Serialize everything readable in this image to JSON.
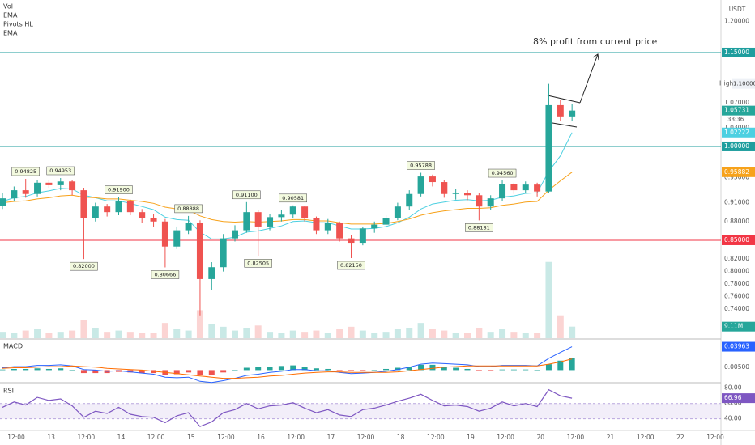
{
  "chart_data": {
    "type": "candlestick",
    "legend": [
      "Vol",
      "EMA",
      "Pivots HL",
      "EMA"
    ],
    "currency": "USDT",
    "annotation": "8% profit from current price",
    "time_labels": [
      "12:00",
      "13",
      "12:00",
      "14",
      "12:00",
      "15",
      "12:00",
      "16",
      "12:00",
      "17",
      "12:00",
      "18",
      "12:00",
      "19",
      "12:00",
      "20",
      "12:00",
      "21",
      "12:00",
      "22",
      "12:00"
    ],
    "ylim": [
      0.6935,
      1.234
    ],
    "yticks": [
      {
        "value": 0.74,
        "label": "0.74000"
      },
      {
        "value": 0.76,
        "label": "0.76000"
      },
      {
        "value": 0.78,
        "label": "0.78000"
      },
      {
        "value": 0.8,
        "label": "0.80000"
      },
      {
        "value": 0.82,
        "label": "0.82000"
      },
      {
        "value": 0.88,
        "label": "0.88000"
      },
      {
        "value": 0.91,
        "label": "0.91000"
      },
      {
        "value": 0.95,
        "label": "0.95000"
      },
      {
        "value": 1.03,
        "label": "1.03000"
      },
      {
        "value": 1.07,
        "label": "1.07000"
      },
      {
        "value": 1.2,
        "label": "1.20000"
      }
    ],
    "candles": {
      "up_color": "#26a69a",
      "down_color": "#ef5350",
      "last_label": "1.05731",
      "countdown": "38:36",
      "open": [
        0.905,
        0.917,
        0.93,
        0.924,
        0.942,
        0.938,
        0.944,
        0.93,
        0.885,
        0.904,
        0.895,
        0.912,
        0.895,
        0.885,
        0.88,
        0.84,
        0.866,
        0.878,
        0.788,
        0.807,
        0.853,
        0.866,
        0.895,
        0.872,
        0.887,
        0.891,
        0.904,
        0.885,
        0.866,
        0.878,
        0.853,
        0.846,
        0.869,
        0.875,
        0.885,
        0.904,
        0.924,
        0.952,
        0.943,
        0.924,
        0.926,
        0.922,
        0.904,
        0.917,
        0.94,
        0.93,
        0.939,
        0.928,
        1.066,
        1.048
      ],
      "high": [
        0.925,
        0.936,
        0.94825,
        0.946,
        0.947,
        0.94953,
        0.946,
        0.934,
        0.91,
        0.908,
        0.919,
        0.915,
        0.9,
        0.892,
        0.884,
        0.872,
        0.88888,
        0.882,
        0.815,
        0.86,
        0.874,
        0.911,
        0.898,
        0.892,
        0.898,
        0.90581,
        0.905,
        0.888,
        0.884,
        0.88,
        0.858,
        0.872,
        0.88,
        0.89,
        0.91,
        0.93,
        0.95788,
        0.955,
        0.946,
        0.932,
        0.93,
        0.925,
        0.922,
        0.9456,
        0.942,
        0.944,
        0.942,
        1.1,
        1.075,
        1.068
      ],
      "low": [
        0.9,
        0.912,
        0.918,
        0.92,
        0.934,
        0.93,
        0.922,
        0.82,
        0.88,
        0.888,
        0.89,
        0.89,
        0.878,
        0.872,
        0.80666,
        0.836,
        0.86,
        0.73,
        0.77,
        0.8,
        0.848,
        0.862,
        0.82505,
        0.866,
        0.88,
        0.886,
        0.88,
        0.86,
        0.86,
        0.848,
        0.8215,
        0.842,
        0.862,
        0.87,
        0.882,
        0.898,
        0.92,
        0.936,
        0.918,
        0.915,
        0.914,
        0.88181,
        0.898,
        0.912,
        0.924,
        0.926,
        0.92,
        0.925,
        1.04,
        1.04
      ],
      "close": [
        0.917,
        0.93,
        0.924,
        0.942,
        0.938,
        0.944,
        0.93,
        0.885,
        0.904,
        0.895,
        0.912,
        0.895,
        0.885,
        0.88,
        0.84,
        0.866,
        0.878,
        0.788,
        0.807,
        0.853,
        0.866,
        0.895,
        0.872,
        0.887,
        0.891,
        0.904,
        0.885,
        0.866,
        0.878,
        0.853,
        0.846,
        0.869,
        0.875,
        0.885,
        0.904,
        0.924,
        0.952,
        0.943,
        0.924,
        0.926,
        0.922,
        0.904,
        0.917,
        0.94,
        0.93,
        0.939,
        0.928,
        1.066,
        1.048,
        1.05731
      ],
      "pivot_high_labels": [
        null,
        null,
        "0.94825",
        null,
        null,
        "0.94953",
        null,
        null,
        null,
        null,
        "0.91900",
        null,
        null,
        null,
        null,
        null,
        "0.88888",
        null,
        null,
        null,
        null,
        "0.91100",
        null,
        null,
        null,
        "0.90581",
        null,
        null,
        null,
        null,
        null,
        null,
        null,
        null,
        null,
        null,
        "0.95788",
        null,
        null,
        null,
        null,
        null,
        null,
        "0.94560",
        null,
        null,
        null,
        null,
        null,
        null
      ],
      "pivot_low_labels": [
        null,
        null,
        null,
        null,
        null,
        null,
        null,
        "0.82000",
        null,
        null,
        null,
        null,
        null,
        null,
        "0.80666",
        null,
        null,
        null,
        null,
        null,
        null,
        null,
        "0.82505",
        null,
        null,
        null,
        null,
        null,
        null,
        null,
        "0.82150",
        null,
        null,
        null,
        null,
        null,
        null,
        null,
        null,
        null,
        null,
        "0.88181",
        null,
        null,
        null,
        null,
        null,
        null,
        null,
        null
      ]
    },
    "ema": [
      {
        "color": "#4dd0e1",
        "last_label": "1.02222",
        "values": [
          0.912,
          0.918,
          0.92,
          0.926,
          0.929,
          0.933,
          0.932,
          0.922,
          0.918,
          0.913,
          0.913,
          0.909,
          0.904,
          0.899,
          0.887,
          0.883,
          0.882,
          0.863,
          0.852,
          0.852,
          0.855,
          0.863,
          0.865,
          0.869,
          0.873,
          0.88,
          0.881,
          0.878,
          0.878,
          0.873,
          0.868,
          0.868,
          0.869,
          0.872,
          0.878,
          0.887,
          0.9,
          0.908,
          0.911,
          0.914,
          0.915,
          0.913,
          0.914,
          0.919,
          0.921,
          0.925,
          0.926,
          0.96,
          0.985,
          1.02222
        ]
      },
      {
        "color": "#f7a21b",
        "last_label": "0.95882",
        "values": [
          0.91,
          0.912,
          0.913,
          0.916,
          0.918,
          0.921,
          0.922,
          0.919,
          0.918,
          0.916,
          0.916,
          0.914,
          0.912,
          0.909,
          0.903,
          0.9,
          0.898,
          0.889,
          0.883,
          0.88,
          0.879,
          0.88,
          0.879,
          0.88,
          0.881,
          0.883,
          0.883,
          0.881,
          0.881,
          0.878,
          0.876,
          0.876,
          0.876,
          0.877,
          0.88,
          0.884,
          0.89,
          0.894,
          0.897,
          0.899,
          0.901,
          0.901,
          0.902,
          0.906,
          0.908,
          0.911,
          0.912,
          0.93,
          0.945,
          0.95882
        ]
      }
    ],
    "hlines": [
      {
        "value": 1.15,
        "label": "1.15000",
        "color": "#1e9e9e"
      },
      {
        "value": 1.0,
        "label": "1.00000",
        "color": "#1e9e9e"
      },
      {
        "value": 0.85,
        "label": "0.85000",
        "color": "#f23645"
      }
    ],
    "high_marker": {
      "caption": "High",
      "value": 1.1,
      "label": "1.10000"
    },
    "volume": {
      "ylim": [
        0,
        70
      ],
      "last_label": "9.11M",
      "values": [
        5,
        4,
        6,
        7,
        4,
        5,
        6,
        14,
        8,
        5,
        6,
        5,
        4,
        4,
        12,
        7,
        6,
        22,
        11,
        9,
        6,
        8,
        10,
        5,
        4,
        6,
        5,
        6,
        4,
        7,
        9,
        6,
        4,
        5,
        7,
        8,
        12,
        7,
        6,
        4,
        4,
        8,
        5,
        7,
        5,
        4,
        4,
        60,
        18,
        9.11
      ]
    },
    "macd": {
      "title": "MACD",
      "ylim": [
        -0.02,
        0.05
      ],
      "yticks": [
        {
          "value": 0.005,
          "label": "0.00500"
        }
      ],
      "up_color": "#26a69a",
      "down_color": "#ef5350",
      "hist": [
        0.001,
        0.002,
        0.002,
        0.003,
        0.002,
        0.003,
        0.0,
        -0.005,
        -0.005,
        -0.005,
        -0.003,
        -0.004,
        -0.005,
        -0.005,
        -0.008,
        -0.007,
        -0.004,
        -0.009,
        -0.009,
        -0.004,
        0.0,
        0.004,
        0.005,
        0.006,
        0.007,
        0.008,
        0.006,
        0.003,
        0.002,
        -0.001,
        -0.002,
        -0.001,
        0.0,
        0.002,
        0.004,
        0.006,
        0.009,
        0.009,
        0.006,
        0.004,
        0.002,
        -0.001,
        -0.001,
        0.001,
        0.001,
        0.001,
        0.0,
        0.01,
        0.016,
        0.021
      ],
      "series": [
        {
          "name": "MACD",
          "color": "#2962ff",
          "last_label": "0.03963",
          "values": [
            0.004,
            0.006,
            0.006,
            0.008,
            0.008,
            0.009,
            0.007,
            0.001,
            0.0,
            -0.002,
            -0.001,
            -0.003,
            -0.005,
            -0.007,
            -0.012,
            -0.013,
            -0.012,
            -0.019,
            -0.021,
            -0.018,
            -0.014,
            -0.009,
            -0.007,
            -0.004,
            -0.002,
            0.001,
            0.001,
            -0.001,
            -0.001,
            -0.004,
            -0.006,
            -0.005,
            -0.004,
            -0.002,
            0.001,
            0.005,
            0.01,
            0.012,
            0.011,
            0.01,
            0.009,
            0.006,
            0.006,
            0.008,
            0.008,
            0.008,
            0.007,
            0.02,
            0.03,
            0.03963
          ]
        },
        {
          "name": "Signal",
          "color": "#ff6d00",
          "values": [
            0.003,
            0.004,
            0.004,
            0.005,
            0.006,
            0.006,
            0.007,
            0.006,
            0.005,
            0.003,
            0.002,
            0.001,
            0.0,
            -0.002,
            -0.004,
            -0.006,
            -0.008,
            -0.01,
            -0.012,
            -0.014,
            -0.014,
            -0.013,
            -0.012,
            -0.01,
            -0.009,
            -0.007,
            -0.005,
            -0.004,
            -0.003,
            -0.003,
            -0.004,
            -0.004,
            -0.004,
            -0.004,
            -0.003,
            -0.001,
            0.001,
            0.003,
            0.005,
            0.006,
            0.007,
            0.007,
            0.007,
            0.007,
            0.007,
            0.007,
            0.007,
            0.01,
            0.014,
            0.019
          ]
        }
      ]
    },
    "rsi": {
      "title": "RSI",
      "ylim": [
        27,
        85
      ],
      "band": [
        40,
        60
      ],
      "color": "#7e57c2",
      "last_label": "66.96",
      "yticks": [
        {
          "value": 80,
          "label": "80.00"
        },
        {
          "value": 60,
          "label": "60.00"
        },
        {
          "value": 40,
          "label": "40.00"
        }
      ],
      "values": [
        55,
        62,
        58,
        68,
        64,
        66,
        57,
        42,
        50,
        47,
        55,
        46,
        43,
        42,
        35,
        44,
        48,
        30,
        36,
        48,
        52,
        60,
        53,
        57,
        58,
        61,
        54,
        48,
        52,
        45,
        43,
        52,
        54,
        58,
        63,
        67,
        72,
        64,
        57,
        58,
        56,
        50,
        54,
        62,
        57,
        60,
        56,
        78,
        70,
        66.96
      ]
    }
  }
}
